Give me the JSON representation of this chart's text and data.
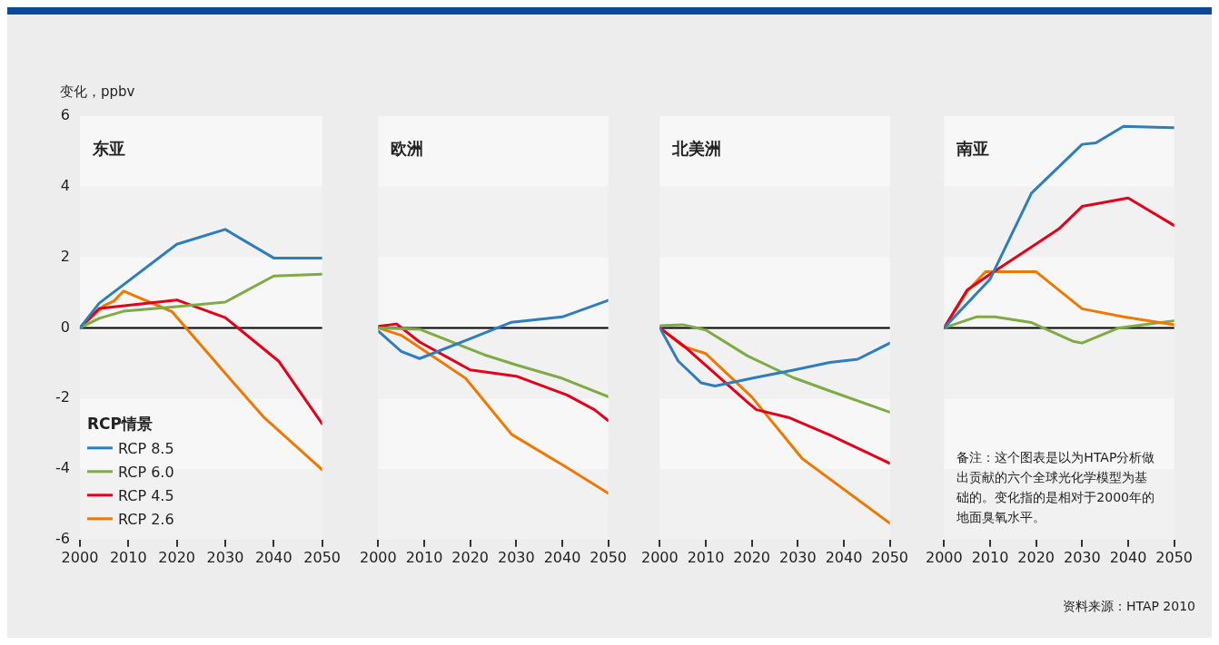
{
  "chart_data": [
    {
      "type": "line",
      "title": "东亚",
      "ylabel": "变化，ppbv",
      "legend_title": "RCP情景",
      "legend": "bottom left",
      "marker": "none",
      "line_style": "solid",
      "xlim": [
        2000,
        2050
      ],
      "xticks": [
        2000,
        2010,
        2020,
        2030,
        2040,
        2050
      ],
      "ylim": [
        -6,
        6
      ],
      "yticks": [
        -6,
        -4,
        -2,
        0,
        2,
        4,
        6
      ],
      "ref_lines": [
        {
          "axis": "y",
          "value": 0,
          "color": "#000000"
        }
      ],
      "series": [
        {
          "name": "RCP 8.5",
          "color": "#2e7ebf",
          "x": [
            2000,
            2004,
            2020,
            2030,
            2040,
            2050
          ],
          "values": [
            0,
            0.7,
            2.37,
            2.79,
            1.98,
            1.98
          ]
        },
        {
          "name": "RCP 6.0",
          "color": "#7fab45",
          "x": [
            2000,
            2004,
            2009,
            2020,
            2030,
            2040,
            2050
          ],
          "values": [
            0,
            0.27,
            0.47,
            0.6,
            0.73,
            1.47,
            1.52
          ]
        },
        {
          "name": "RCP 4.5",
          "color": "#e3001b",
          "x": [
            2000,
            2004,
            2020,
            2030,
            2041,
            2050
          ],
          "values": [
            0,
            0.55,
            0.79,
            0.29,
            -0.94,
            -2.72
          ]
        },
        {
          "name": "RCP 2.6",
          "color": "#f07800",
          "x": [
            2000,
            2005,
            2007,
            2009,
            2019,
            2030,
            2038,
            2050
          ],
          "values": [
            0,
            0.63,
            0.76,
            1.04,
            0.46,
            -1.29,
            -2.54,
            -4.02
          ]
        }
      ]
    },
    {
      "type": "line",
      "title": "欧洲",
      "marker": "none",
      "line_style": "solid",
      "tick_labels": "x",
      "xlim": [
        2000,
        2050
      ],
      "xticks": [
        2000,
        2010,
        2020,
        2030,
        2040,
        2050
      ],
      "ylim": [
        -6,
        6
      ],
      "yticks": [
        -6,
        -4,
        -2,
        0,
        2,
        4,
        6
      ],
      "ref_lines": [
        {
          "axis": "y",
          "value": 0,
          "color": "#000000"
        }
      ],
      "series": [
        {
          "color": "#2e7ebf",
          "x": [
            2000,
            2005,
            2009,
            2019,
            2029,
            2040,
            2050
          ],
          "values": [
            -0.09,
            -0.67,
            -0.87,
            -0.36,
            0.16,
            0.31,
            0.78
          ]
        },
        {
          "color": "#7fab45",
          "x": [
            2000,
            2009,
            2023,
            2030,
            2040,
            2050
          ],
          "values": [
            0,
            -0.04,
            -0.76,
            -1.05,
            -1.43,
            -1.95
          ]
        },
        {
          "color": "#e3001b",
          "x": [
            2000,
            2004,
            2009,
            2020,
            2030,
            2041,
            2047,
            2050
          ],
          "values": [
            0.04,
            0.11,
            -0.4,
            -1.19,
            -1.37,
            -1.9,
            -2.32,
            -2.63
          ]
        },
        {
          "color": "#f07800",
          "x": [
            2000,
            2005,
            2019,
            2029,
            2040,
            2050
          ],
          "values": [
            0,
            -0.21,
            -1.43,
            -3.02,
            -3.88,
            -4.69
          ]
        }
      ]
    },
    {
      "type": "line",
      "title": "北美洲",
      "marker": "none",
      "line_style": "solid",
      "tick_labels": "x",
      "xlim": [
        2000,
        2050
      ],
      "xticks": [
        2000,
        2010,
        2020,
        2030,
        2040,
        2050
      ],
      "ylim": [
        -6,
        6
      ],
      "yticks": [
        -6,
        -4,
        -2,
        0,
        2,
        4,
        6
      ],
      "ref_lines": [
        {
          "axis": "y",
          "value": 0,
          "color": "#000000"
        }
      ],
      "series": [
        {
          "color": "#2e7ebf",
          "x": [
            2000,
            2004,
            2009,
            2012,
            2020,
            2029,
            2037,
            2043,
            2050
          ],
          "values": [
            0,
            -0.94,
            -1.56,
            -1.65,
            -1.43,
            -1.2,
            -0.98,
            -0.89,
            -0.43
          ]
        },
        {
          "color": "#7fab45",
          "x": [
            2000,
            2005,
            2010,
            2019,
            2029,
            2037,
            2050
          ],
          "values": [
            0.06,
            0.09,
            -0.06,
            -0.79,
            -1.41,
            -1.79,
            -2.39
          ]
        },
        {
          "color": "#e3001b",
          "x": [
            2000,
            2005,
            2019,
            2021,
            2028,
            2037,
            2050
          ],
          "values": [
            0,
            -0.49,
            -2.1,
            -2.32,
            -2.54,
            -3.04,
            -3.84
          ]
        },
        {
          "color": "#f07800",
          "x": [
            2000,
            2005,
            2010,
            2020,
            2031,
            2050
          ],
          "values": [
            0,
            -0.52,
            -0.73,
            -1.96,
            -3.71,
            -5.54
          ]
        }
      ]
    },
    {
      "type": "line",
      "title": "南亚",
      "marker": "none",
      "line_style": "solid",
      "tick_labels": "x",
      "xlim": [
        2000,
        2050
      ],
      "xticks": [
        2000,
        2010,
        2020,
        2030,
        2040,
        2050
      ],
      "ylim": [
        -6,
        6
      ],
      "yticks": [
        -6,
        -4,
        -2,
        0,
        2,
        4,
        6
      ],
      "ref_lines": [
        {
          "axis": "y",
          "value": 0,
          "color": "#000000"
        }
      ],
      "annotations": [
        "备注：这个图表是以为HTAP分析做出贡献的六个全球光化学模型为基础的。变化指的是相对于2000年的地面臭氧水平。",
        "资料来源：HTAP 2010"
      ],
      "series": [
        {
          "color": "#2e7ebf",
          "x": [
            2000,
            2010,
            2019,
            2030,
            2033,
            2039,
            2050
          ],
          "values": [
            0,
            1.38,
            3.82,
            5.2,
            5.24,
            5.71,
            5.67
          ]
        },
        {
          "color": "#e3001b",
          "x": [
            2000,
            2005,
            2010,
            2019,
            2025,
            2030,
            2040,
            2050
          ],
          "values": [
            0,
            1.07,
            1.52,
            2.29,
            2.81,
            3.44,
            3.68,
            2.9
          ]
        },
        {
          "color": "#f07800",
          "x": [
            2000,
            2005,
            2009,
            2020,
            2030,
            2039,
            2050
          ],
          "values": [
            0,
            1.03,
            1.59,
            1.59,
            0.54,
            0.31,
            0.09
          ]
        },
        {
          "color": "#7fab45",
          "x": [
            2000,
            2007,
            2011,
            2019,
            2028,
            2030,
            2038,
            2050
          ],
          "values": [
            0,
            0.31,
            0.31,
            0.15,
            -0.38,
            -0.43,
            0,
            0.2
          ]
        }
      ]
    }
  ]
}
